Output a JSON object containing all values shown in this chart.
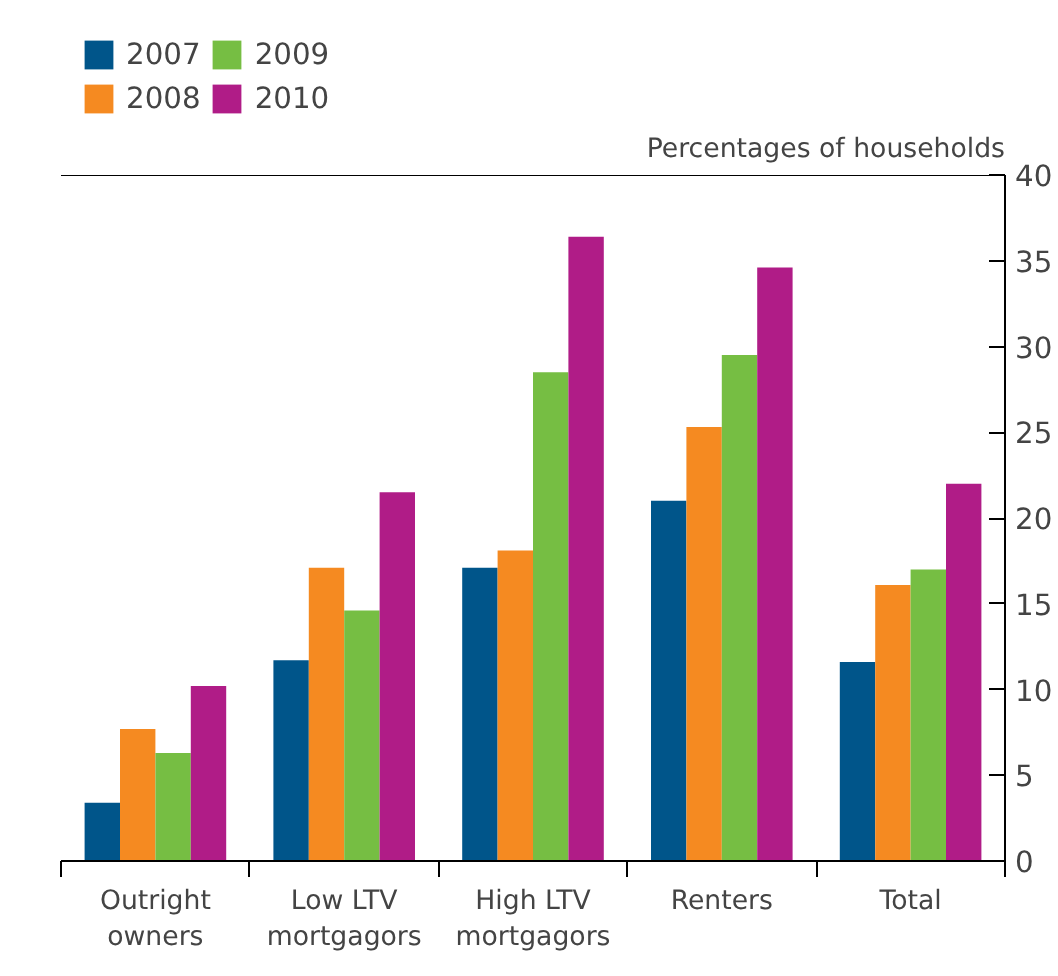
{
  "chart_data": {
    "type": "bar",
    "ylabel": "Percentages of households",
    "categories": [
      "Outright\nowners",
      "Low LTV\nmortgagors",
      "High LTV\nmortgagors",
      "Renters",
      "Total"
    ],
    "series": [
      {
        "name": "2007",
        "color": "#00558a",
        "values": [
          3.4,
          11.7,
          17.1,
          21.0,
          11.6
        ]
      },
      {
        "name": "2008",
        "color": "#f58a21",
        "values": [
          7.7,
          17.1,
          18.1,
          25.3,
          16.1
        ]
      },
      {
        "name": "2009",
        "color": "#76be43",
        "values": [
          6.3,
          14.6,
          28.5,
          29.5,
          17.0
        ]
      },
      {
        "name": "2010",
        "color": "#b01c87",
        "values": [
          10.2,
          21.5,
          36.4,
          34.6,
          22.0
        ]
      }
    ],
    "ylim": [
      0,
      40
    ],
    "yticks": [
      0,
      5,
      10,
      15,
      20,
      25,
      30,
      35,
      40
    ],
    "grid": false,
    "legend": "top left"
  }
}
